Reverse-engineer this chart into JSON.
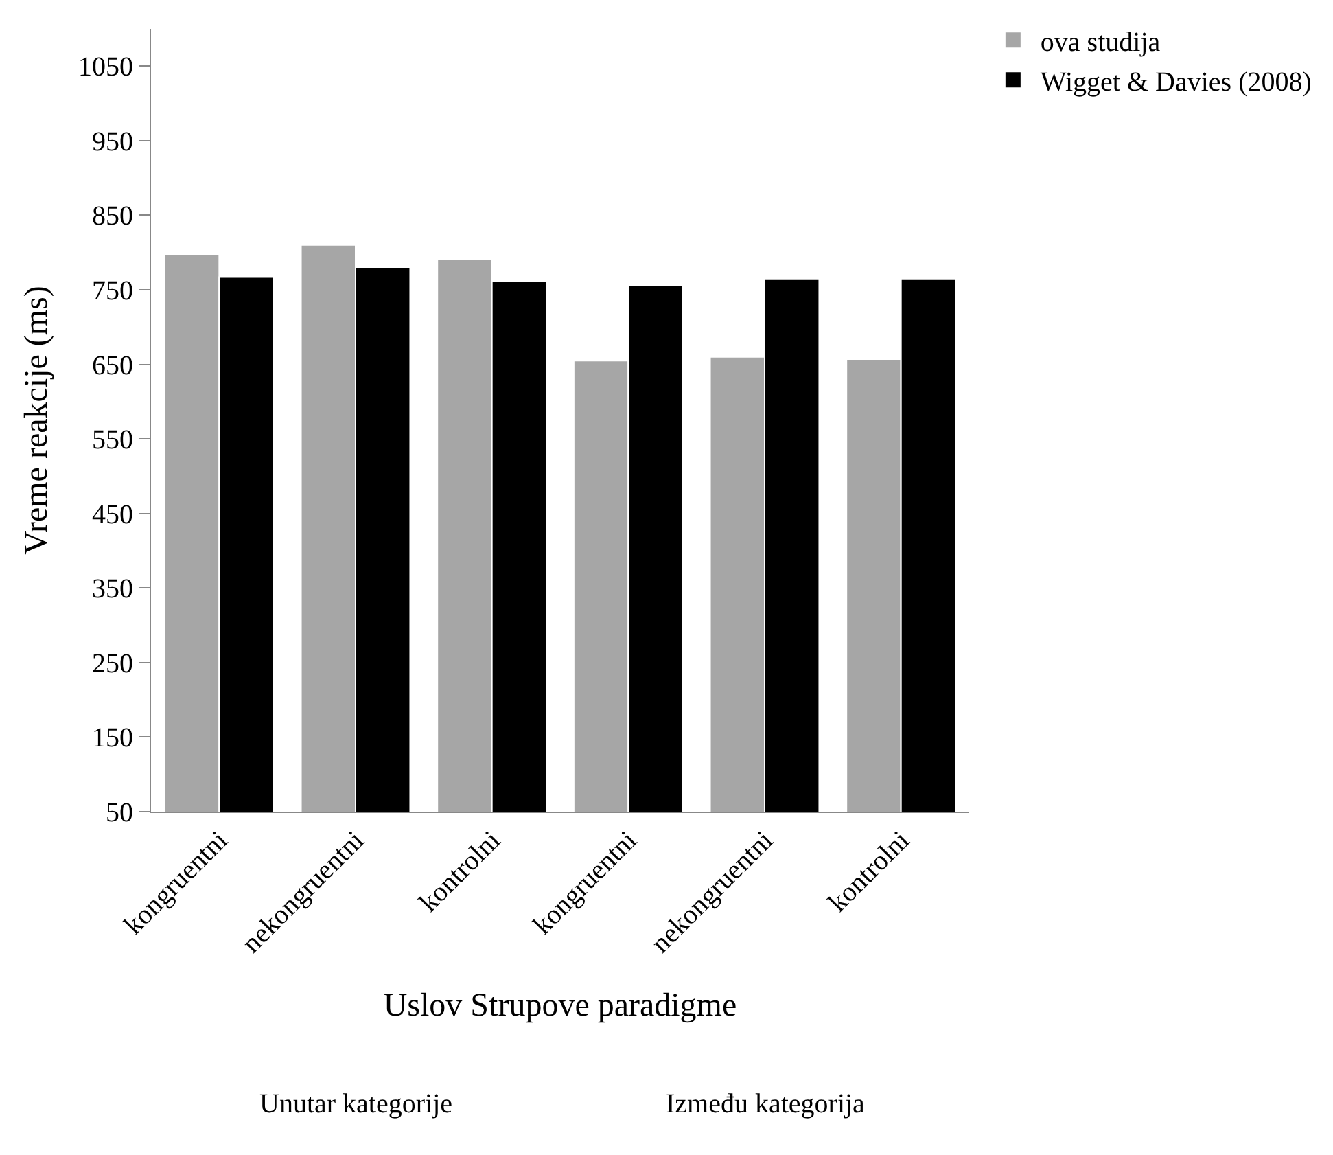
{
  "chart_data": {
    "type": "bar",
    "ylabel": "Vreme reakcije (ms)",
    "xlabel": "Uslov Strupove paradigme",
    "categories": [
      "kongruentni",
      "nekongruentni",
      "kontrolni",
      "kongruentni",
      "nekongruentni",
      "kontrolni"
    ],
    "series": [
      {
        "name": "ova studija",
        "color": "#a6a6a6",
        "values": [
          797,
          810,
          791,
          655,
          660,
          657
        ]
      },
      {
        "name": "Wigget & Davies (2008)",
        "color": "#000000",
        "values": [
          767,
          780,
          762,
          756,
          764,
          764
        ]
      }
    ],
    "ylim": [
      50,
      1100
    ],
    "yticks": [
      50,
      150,
      250,
      350,
      450,
      550,
      650,
      750,
      850,
      950,
      1050
    ],
    "annotations": [
      "Unutar kategorije",
      "Između kategorija"
    ],
    "legend": "top right"
  }
}
